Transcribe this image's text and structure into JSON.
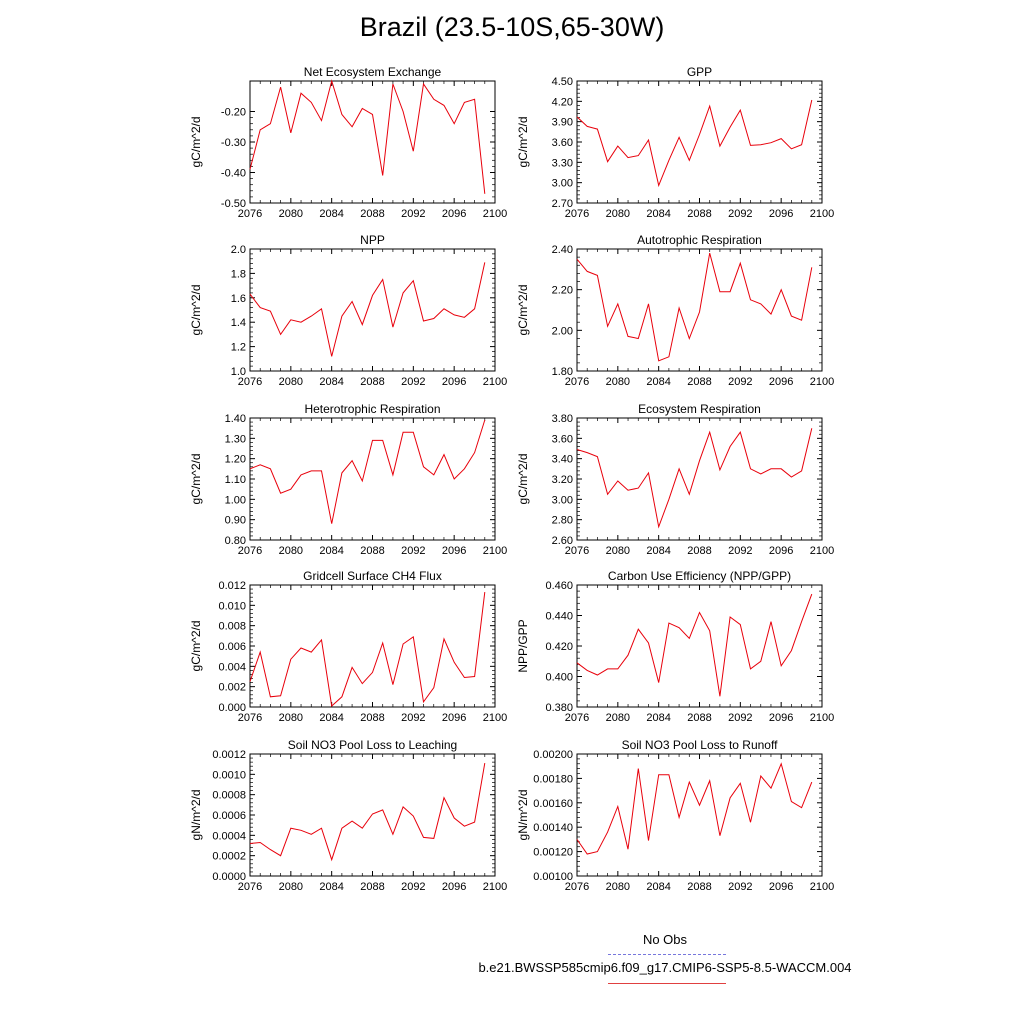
{
  "title": "Brazil (23.5-10S,65-30W)",
  "legend": {
    "obs_label": "No Obs",
    "model_label": "b.e21.BWSSP585cmip6.f09_g17.CMIP6-SSP5-8.5-WACCM.004",
    "obs_color": "#7777dd",
    "model_color": "#e04040"
  },
  "chart_data": [
    {
      "type": "line",
      "title": "Net Ecosystem Exchange",
      "ylabel": "gC/m^2/d",
      "xlim": [
        2076,
        2100
      ],
      "ylim": [
        -0.5,
        -0.1
      ],
      "yticks": [
        -0.5,
        -0.4,
        -0.3,
        -0.2
      ],
      "ytick_labels": [
        "-0.50",
        "-0.40",
        "-0.30",
        "-0.20"
      ],
      "xticks": [
        2076,
        2080,
        2084,
        2088,
        2092,
        2096,
        2100
      ],
      "x": [
        2076,
        2077,
        2078,
        2079,
        2080,
        2081,
        2082,
        2083,
        2084,
        2085,
        2086,
        2087,
        2088,
        2089,
        2090,
        2091,
        2092,
        2093,
        2094,
        2095,
        2096,
        2097,
        2098,
        2099
      ],
      "series": [
        {
          "values": [
            -0.39,
            -0.26,
            -0.24,
            -0.12,
            -0.27,
            -0.14,
            -0.17,
            -0.23,
            -0.1,
            -0.21,
            -0.25,
            -0.19,
            -0.21,
            -0.41,
            -0.11,
            -0.2,
            -0.33,
            -0.11,
            -0.16,
            -0.18,
            -0.24,
            -0.17,
            -0.16,
            -0.47
          ],
          "color": "#e8000b"
        }
      ]
    },
    {
      "type": "line",
      "title": "GPP",
      "ylabel": "gC/m^2/d",
      "xlim": [
        2076,
        2100
      ],
      "ylim": [
        2.7,
        4.5
      ],
      "yticks": [
        2.7,
        3.0,
        3.3,
        3.6,
        3.9,
        4.2,
        4.5
      ],
      "ytick_labels": [
        "2.70",
        "3.00",
        "3.30",
        "3.60",
        "3.90",
        "4.20",
        "4.50"
      ],
      "xticks": [
        2076,
        2080,
        2084,
        2088,
        2092,
        2096,
        2100
      ],
      "x": [
        2076,
        2077,
        2078,
        2079,
        2080,
        2081,
        2082,
        2083,
        2084,
        2085,
        2086,
        2087,
        2088,
        2089,
        2090,
        2091,
        2092,
        2093,
        2094,
        2095,
        2096,
        2097,
        2098,
        2099
      ],
      "series": [
        {
          "values": [
            3.97,
            3.83,
            3.79,
            3.31,
            3.54,
            3.37,
            3.4,
            3.63,
            2.96,
            3.33,
            3.67,
            3.33,
            3.71,
            4.13,
            3.54,
            3.82,
            4.07,
            3.55,
            3.56,
            3.59,
            3.65,
            3.5,
            3.56,
            4.22
          ],
          "color": "#e8000b"
        }
      ]
    },
    {
      "type": "line",
      "title": "NPP",
      "ylabel": "gC/m^2/d",
      "xlim": [
        2076,
        2100
      ],
      "ylim": [
        1.0,
        2.0
      ],
      "yticks": [
        1.0,
        1.2,
        1.4,
        1.6,
        1.8,
        2.0
      ],
      "ytick_labels": [
        "1.0",
        "1.2",
        "1.4",
        "1.6",
        "1.8",
        "2.0"
      ],
      "xticks": [
        2076,
        2080,
        2084,
        2088,
        2092,
        2096,
        2100
      ],
      "x": [
        2076,
        2077,
        2078,
        2079,
        2080,
        2081,
        2082,
        2083,
        2084,
        2085,
        2086,
        2087,
        2088,
        2089,
        2090,
        2091,
        2092,
        2093,
        2094,
        2095,
        2096,
        2097,
        2098,
        2099
      ],
      "series": [
        {
          "values": [
            1.63,
            1.52,
            1.49,
            1.3,
            1.42,
            1.4,
            1.45,
            1.51,
            1.12,
            1.45,
            1.57,
            1.38,
            1.62,
            1.75,
            1.36,
            1.64,
            1.74,
            1.41,
            1.43,
            1.51,
            1.46,
            1.44,
            1.51,
            1.89
          ],
          "color": "#e8000b"
        }
      ]
    },
    {
      "type": "line",
      "title": "Autotrophic Respiration",
      "ylabel": "gC/m^2/d",
      "xlim": [
        2076,
        2100
      ],
      "ylim": [
        1.8,
        2.4
      ],
      "yticks": [
        1.8,
        2.0,
        2.2,
        2.4
      ],
      "ytick_labels": [
        "1.80",
        "2.00",
        "2.20",
        "2.40"
      ],
      "xticks": [
        2076,
        2080,
        2084,
        2088,
        2092,
        2096,
        2100
      ],
      "x": [
        2076,
        2077,
        2078,
        2079,
        2080,
        2081,
        2082,
        2083,
        2084,
        2085,
        2086,
        2087,
        2088,
        2089,
        2090,
        2091,
        2092,
        2093,
        2094,
        2095,
        2096,
        2097,
        2098,
        2099
      ],
      "series": [
        {
          "values": [
            2.35,
            2.29,
            2.27,
            2.02,
            2.13,
            1.97,
            1.96,
            2.13,
            1.85,
            1.87,
            2.11,
            1.96,
            2.09,
            2.38,
            2.19,
            2.19,
            2.33,
            2.15,
            2.13,
            2.08,
            2.2,
            2.07,
            2.05,
            2.31
          ],
          "color": "#e8000b"
        }
      ]
    },
    {
      "type": "line",
      "title": "Heterotrophic Respiration",
      "ylabel": "gC/m^2/d",
      "xlim": [
        2076,
        2100
      ],
      "ylim": [
        0.8,
        1.4
      ],
      "yticks": [
        0.8,
        0.9,
        1.0,
        1.1,
        1.2,
        1.3,
        1.4
      ],
      "ytick_labels": [
        "0.80",
        "0.90",
        "1.00",
        "1.10",
        "1.20",
        "1.30",
        "1.40"
      ],
      "xticks": [
        2076,
        2080,
        2084,
        2088,
        2092,
        2096,
        2100
      ],
      "x": [
        2076,
        2077,
        2078,
        2079,
        2080,
        2081,
        2082,
        2083,
        2084,
        2085,
        2086,
        2087,
        2088,
        2089,
        2090,
        2091,
        2092,
        2093,
        2094,
        2095,
        2096,
        2097,
        2098,
        2099
      ],
      "series": [
        {
          "values": [
            1.15,
            1.17,
            1.15,
            1.03,
            1.05,
            1.12,
            1.14,
            1.14,
            0.88,
            1.13,
            1.19,
            1.09,
            1.29,
            1.29,
            1.12,
            1.33,
            1.33,
            1.16,
            1.12,
            1.22,
            1.1,
            1.15,
            1.23,
            1.39
          ],
          "color": "#e8000b"
        }
      ]
    },
    {
      "type": "line",
      "title": "Ecosystem Respiration",
      "ylabel": "gC/m^2/d",
      "xlim": [
        2076,
        2100
      ],
      "ylim": [
        2.6,
        3.8
      ],
      "yticks": [
        2.6,
        2.8,
        3.0,
        3.2,
        3.4,
        3.6,
        3.8
      ],
      "ytick_labels": [
        "2.60",
        "2.80",
        "3.00",
        "3.20",
        "3.40",
        "3.60",
        "3.80"
      ],
      "xticks": [
        2076,
        2080,
        2084,
        2088,
        2092,
        2096,
        2100
      ],
      "x": [
        2076,
        2077,
        2078,
        2079,
        2080,
        2081,
        2082,
        2083,
        2084,
        2085,
        2086,
        2087,
        2088,
        2089,
        2090,
        2091,
        2092,
        2093,
        2094,
        2095,
        2096,
        2097,
        2098,
        2099
      ],
      "series": [
        {
          "values": [
            3.49,
            3.46,
            3.42,
            3.05,
            3.18,
            3.09,
            3.11,
            3.26,
            2.73,
            3.0,
            3.3,
            3.05,
            3.38,
            3.66,
            3.29,
            3.52,
            3.66,
            3.3,
            3.25,
            3.3,
            3.3,
            3.22,
            3.28,
            3.7
          ],
          "color": "#e8000b"
        }
      ]
    },
    {
      "type": "line",
      "title": "Gridcell Surface CH4 Flux",
      "ylabel": "gC/m^2/d",
      "xlim": [
        2076,
        2100
      ],
      "ylim": [
        0.0,
        0.012
      ],
      "yticks": [
        0.0,
        0.002,
        0.004,
        0.006,
        0.008,
        0.01,
        0.012
      ],
      "ytick_labels": [
        "0.000",
        "0.002",
        "0.004",
        "0.006",
        "0.008",
        "0.010",
        "0.012"
      ],
      "xticks": [
        2076,
        2080,
        2084,
        2088,
        2092,
        2096,
        2100
      ],
      "x": [
        2076,
        2077,
        2078,
        2079,
        2080,
        2081,
        2082,
        2083,
        2084,
        2085,
        2086,
        2087,
        2088,
        2089,
        2090,
        2091,
        2092,
        2093,
        2094,
        2095,
        2096,
        2097,
        2098,
        2099
      ],
      "series": [
        {
          "values": [
            0.0025,
            0.0054,
            0.001,
            0.0011,
            0.0047,
            0.0058,
            0.0054,
            0.0066,
            0.0001,
            0.001,
            0.0039,
            0.0023,
            0.0034,
            0.0063,
            0.0022,
            0.0062,
            0.0069,
            0.0005,
            0.0019,
            0.0067,
            0.0044,
            0.0029,
            0.003,
            0.0113
          ],
          "color": "#e8000b"
        }
      ]
    },
    {
      "type": "line",
      "title": "Carbon Use Efficiency (NPP/GPP)",
      "ylabel": "NPP/GPP",
      "xlim": [
        2076,
        2100
      ],
      "ylim": [
        0.38,
        0.46
      ],
      "yticks": [
        0.38,
        0.4,
        0.42,
        0.44,
        0.46
      ],
      "ytick_labels": [
        "0.380",
        "0.400",
        "0.420",
        "0.440",
        "0.460"
      ],
      "xticks": [
        2076,
        2080,
        2084,
        2088,
        2092,
        2096,
        2100
      ],
      "x": [
        2076,
        2077,
        2078,
        2079,
        2080,
        2081,
        2082,
        2083,
        2084,
        2085,
        2086,
        2087,
        2088,
        2089,
        2090,
        2091,
        2092,
        2093,
        2094,
        2095,
        2096,
        2097,
        2098,
        2099
      ],
      "series": [
        {
          "values": [
            0.409,
            0.404,
            0.401,
            0.405,
            0.405,
            0.414,
            0.431,
            0.422,
            0.396,
            0.435,
            0.432,
            0.425,
            0.442,
            0.43,
            0.387,
            0.439,
            0.434,
            0.405,
            0.41,
            0.436,
            0.407,
            0.417,
            0.436,
            0.454
          ],
          "color": "#e8000b"
        }
      ]
    },
    {
      "type": "line",
      "title": "Soil NO3 Pool Loss to Leaching",
      "ylabel": "gN/m^2/d",
      "xlim": [
        2076,
        2100
      ],
      "ylim": [
        0.0,
        0.0012
      ],
      "yticks": [
        0.0,
        0.0002,
        0.0004,
        0.0006,
        0.0008,
        0.001,
        0.0012
      ],
      "ytick_labels": [
        "0.0000",
        "0.0002",
        "0.0004",
        "0.0006",
        "0.0008",
        "0.0010",
        "0.0012"
      ],
      "xticks": [
        2076,
        2080,
        2084,
        2088,
        2092,
        2096,
        2100
      ],
      "x": [
        2076,
        2077,
        2078,
        2079,
        2080,
        2081,
        2082,
        2083,
        2084,
        2085,
        2086,
        2087,
        2088,
        2089,
        2090,
        2091,
        2092,
        2093,
        2094,
        2095,
        2096,
        2097,
        2098,
        2099
      ],
      "series": [
        {
          "values": [
            0.00032,
            0.00033,
            0.00026,
            0.0002,
            0.00047,
            0.00045,
            0.00041,
            0.00047,
            0.00016,
            0.00047,
            0.00054,
            0.00047,
            0.00061,
            0.00065,
            0.00041,
            0.00068,
            0.00059,
            0.00038,
            0.00037,
            0.00077,
            0.00057,
            0.00049,
            0.00053,
            0.00111
          ],
          "color": "#e8000b"
        }
      ]
    },
    {
      "type": "line",
      "title": "Soil NO3 Pool Loss to Runoff",
      "ylabel": "gN/m^2/d",
      "xlim": [
        2076,
        2100
      ],
      "ylim": [
        0.001,
        0.002
      ],
      "yticks": [
        0.001,
        0.0012,
        0.0014,
        0.0016,
        0.0018,
        0.002
      ],
      "ytick_labels": [
        "0.00100",
        "0.00120",
        "0.00140",
        "0.00160",
        "0.00180",
        "0.00200"
      ],
      "xticks": [
        2076,
        2080,
        2084,
        2088,
        2092,
        2096,
        2100
      ],
      "x": [
        2076,
        2077,
        2078,
        2079,
        2080,
        2081,
        2082,
        2083,
        2084,
        2085,
        2086,
        2087,
        2088,
        2089,
        2090,
        2091,
        2092,
        2093,
        2094,
        2095,
        2096,
        2097,
        2098,
        2099
      ],
      "series": [
        {
          "values": [
            0.0013,
            0.00118,
            0.0012,
            0.00136,
            0.00157,
            0.00122,
            0.00188,
            0.00129,
            0.00183,
            0.00183,
            0.00148,
            0.00177,
            0.00158,
            0.00178,
            0.00133,
            0.00164,
            0.00176,
            0.00144,
            0.00182,
            0.00172,
            0.00192,
            0.00161,
            0.00156,
            0.00177
          ],
          "color": "#e8000b"
        }
      ]
    }
  ]
}
